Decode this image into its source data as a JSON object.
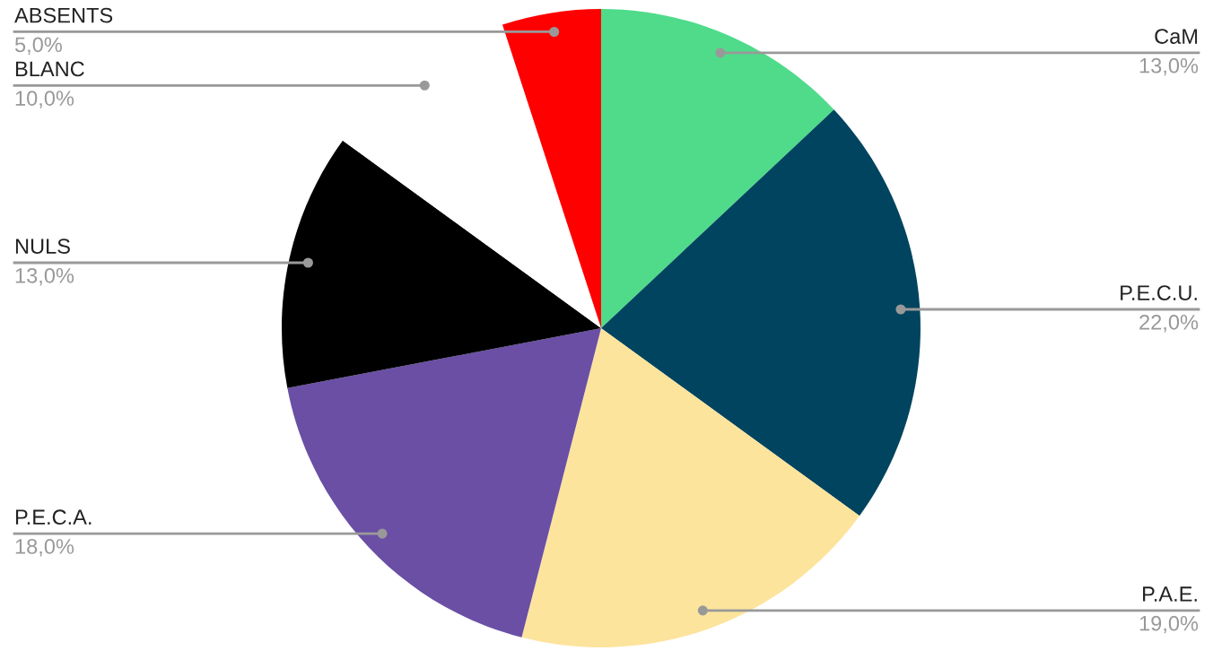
{
  "chart_data": {
    "type": "pie",
    "categories": [
      "CaM",
      "P.E.C.U.",
      "P.A.E.",
      "P.E.C.A.",
      "NULS",
      "BLANC",
      "ABSENTS"
    ],
    "values": [
      13,
      22,
      19,
      18,
      13,
      10,
      5
    ],
    "colors": [
      "#4fdb8a",
      "#00445f",
      "#fde49c",
      "#6a4fa5",
      "#000000",
      "#ffffff",
      "#ff0000"
    ],
    "value_labels": [
      "13,0%",
      "22,0%",
      "19,0%",
      "18,0%",
      "13,0%",
      "10,0%",
      "5,0%"
    ]
  }
}
